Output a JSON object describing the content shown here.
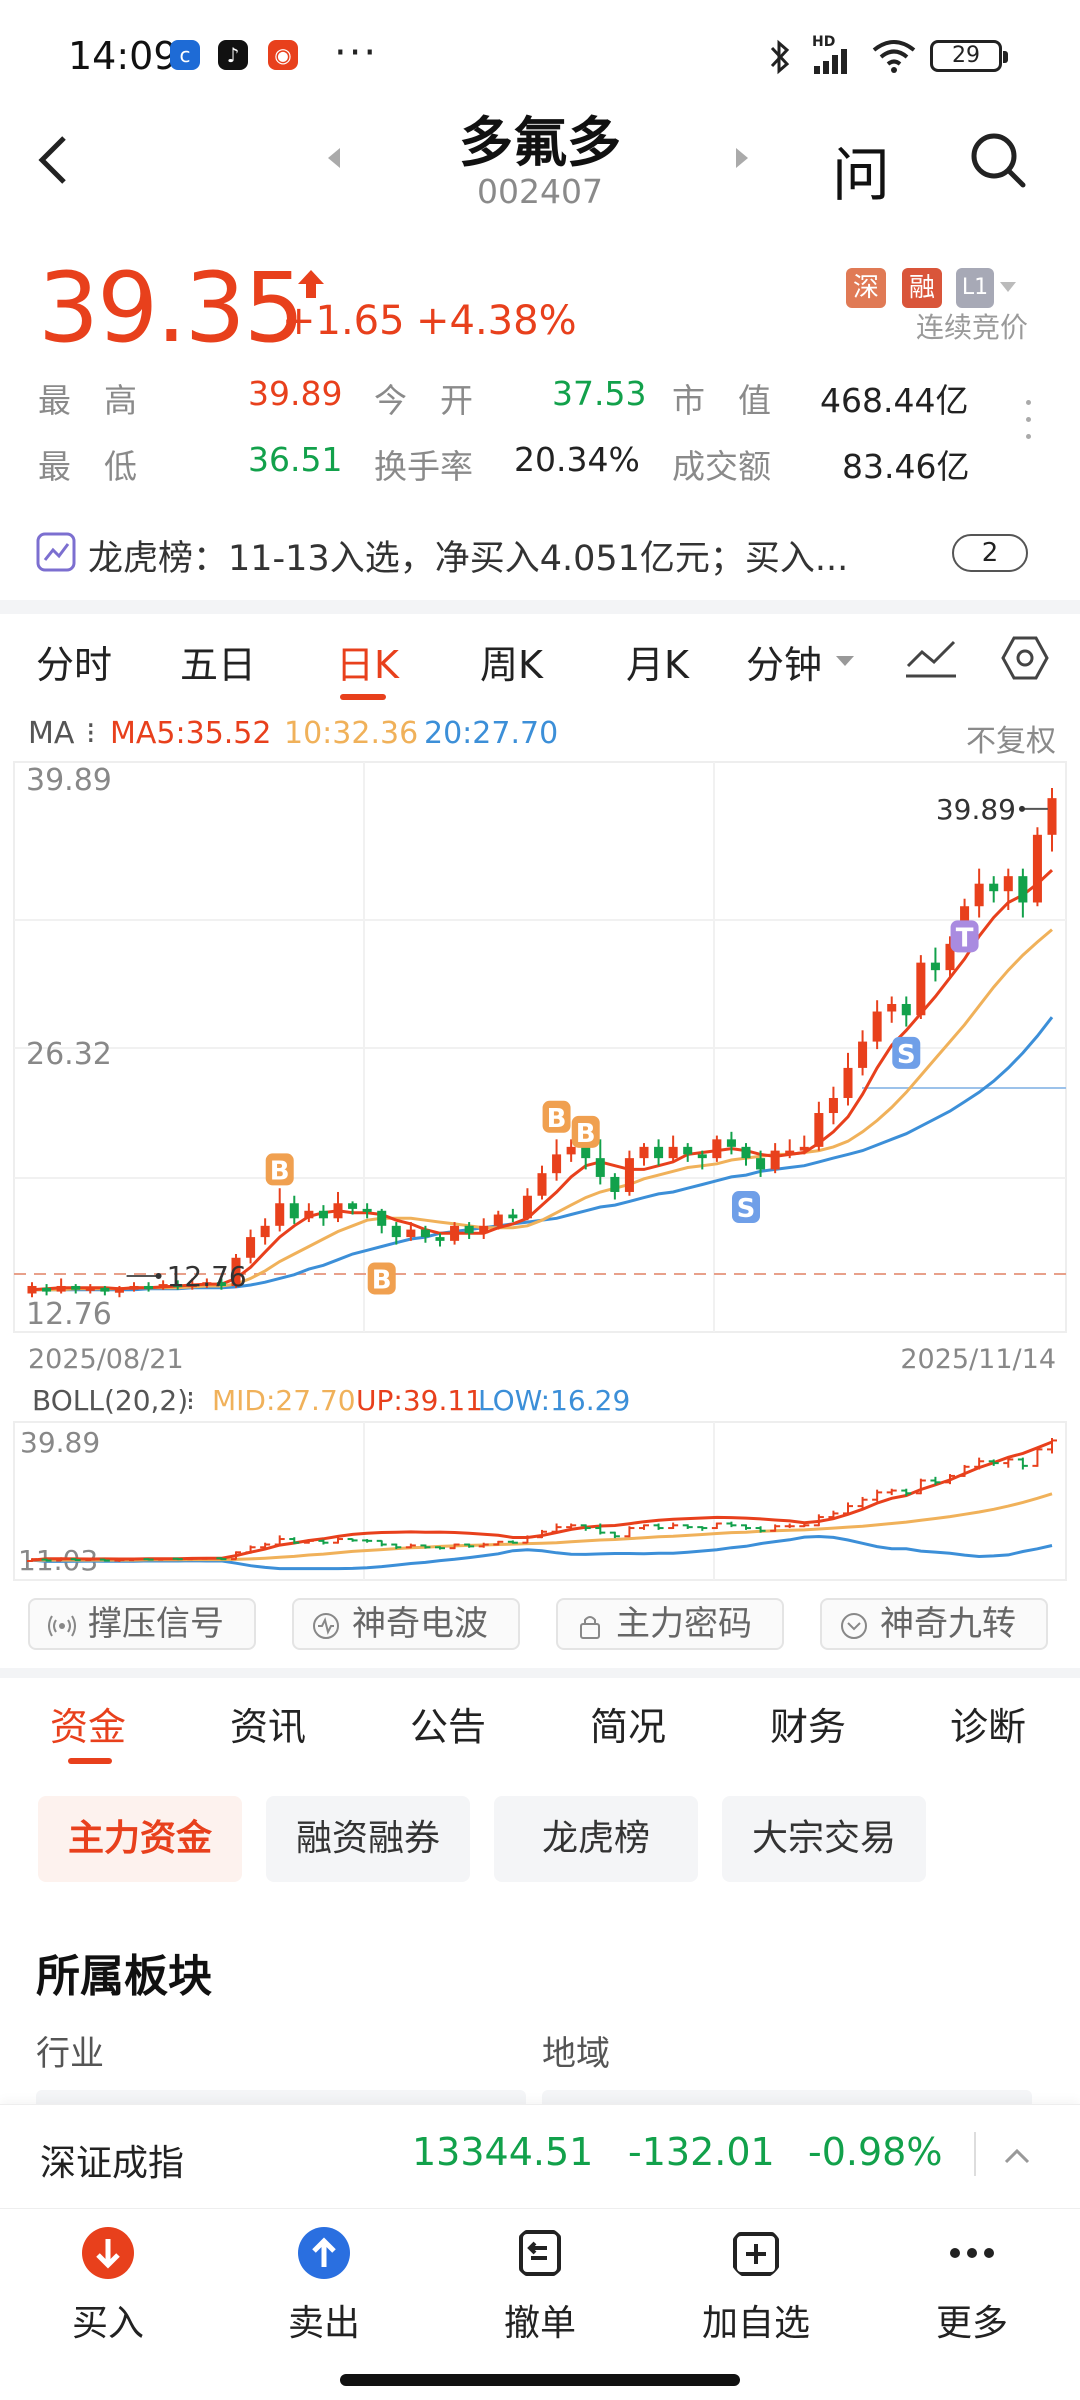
{
  "status_bar": {
    "time": "14:09",
    "battery": "29",
    "network": "HD"
  },
  "header": {
    "name": "多氟多",
    "code": "002407",
    "ask_label": "问"
  },
  "quote": {
    "price": "39.35",
    "change": "+1.65",
    "change_pct": "+4.38%",
    "tags": [
      "深",
      "融",
      "L1"
    ],
    "status": "连续竞价",
    "rows": [
      [
        {
          "label": "最　高",
          "value": "39.89",
          "color": "red"
        },
        {
          "label": "今　开",
          "value": "37.53",
          "color": "green"
        },
        {
          "label": "市　值",
          "value": "468.44亿",
          "color": "black"
        }
      ],
      [
        {
          "label": "最　低",
          "value": "36.51",
          "color": "green"
        },
        {
          "label": "换手率",
          "value": "20.34%",
          "color": "black"
        },
        {
          "label": "成交额",
          "value": "83.46亿",
          "color": "black"
        }
      ]
    ]
  },
  "dragon_list": {
    "text": "龙虎榜：11-13入选，净买入4.051亿元；买入...",
    "badge": "2"
  },
  "chart_tabs": [
    "分时",
    "五日",
    "日K",
    "周K",
    "月K",
    "分钟"
  ],
  "active_chart_tab": "日K",
  "ma": {
    "label": "MA",
    "ma5": "MA5:35.52",
    "ma10": "10:32.36",
    "ma20": "20:27.70",
    "adjust": "不复权",
    "colors": {
      "ma5": "#e8401c",
      "ma10": "#f0b15a",
      "ma20": "#3c8fd8"
    }
  },
  "chart_data": {
    "type": "candlestick",
    "y_high_label": "39.89",
    "y_mid_label": "26.32",
    "y_low_label": "12.76",
    "max_marker": "39.89",
    "min_marker": "12.76",
    "x_start": "2025/08/21",
    "x_end": "2025/11/14",
    "ylim": [
      12.76,
      39.89
    ],
    "signals": [
      "B",
      "B",
      "B",
      "B",
      "S",
      "S",
      "T"
    ],
    "candles": [
      [
        13.0,
        13.4,
        12.8,
        13.6
      ],
      [
        13.3,
        13.1,
        12.9,
        13.5
      ],
      [
        13.1,
        13.4,
        13.0,
        13.8
      ],
      [
        13.4,
        13.2,
        13.0,
        13.5
      ],
      [
        13.2,
        13.3,
        13.0,
        13.5
      ],
      [
        13.3,
        13.1,
        12.9,
        13.4
      ],
      [
        13.1,
        13.2,
        12.8,
        13.4
      ],
      [
        13.2,
        13.4,
        13.1,
        13.6
      ],
      [
        13.4,
        13.3,
        13.1,
        13.6
      ],
      [
        13.3,
        13.5,
        13.2,
        13.7
      ],
      [
        13.5,
        13.4,
        13.2,
        13.7
      ],
      [
        13.4,
        13.5,
        13.2,
        13.8
      ],
      [
        13.5,
        13.6,
        13.3,
        13.8
      ],
      [
        13.6,
        13.4,
        13.2,
        13.8
      ],
      [
        13.4,
        14.9,
        13.3,
        15.1
      ],
      [
        14.9,
        16.0,
        14.6,
        16.4
      ],
      [
        16.0,
        16.6,
        15.6,
        17.0
      ],
      [
        16.6,
        17.8,
        16.3,
        18.6
      ],
      [
        17.8,
        17.0,
        16.7,
        18.2
      ],
      [
        17.0,
        17.4,
        16.8,
        17.8
      ],
      [
        17.4,
        17.0,
        16.6,
        17.7
      ],
      [
        17.0,
        17.8,
        16.8,
        18.4
      ],
      [
        17.8,
        17.5,
        17.2,
        17.9
      ],
      [
        17.5,
        17.4,
        17.0,
        17.8
      ],
      [
        17.4,
        16.6,
        16.2,
        17.5
      ],
      [
        16.6,
        16.0,
        15.6,
        16.8
      ],
      [
        16.0,
        16.4,
        15.8,
        16.8
      ],
      [
        16.4,
        16.0,
        15.7,
        16.6
      ],
      [
        16.0,
        15.8,
        15.5,
        16.2
      ],
      [
        15.8,
        16.6,
        15.6,
        16.8
      ],
      [
        16.6,
        16.2,
        15.9,
        16.8
      ],
      [
        16.2,
        16.6,
        15.9,
        17.0
      ],
      [
        16.6,
        17.2,
        16.4,
        17.4
      ],
      [
        17.2,
        17.0,
        16.8,
        17.5
      ],
      [
        17.0,
        18.2,
        16.9,
        18.6
      ],
      [
        18.2,
        19.4,
        18.0,
        19.8
      ],
      [
        19.4,
        20.4,
        19.0,
        21.2
      ],
      [
        20.4,
        20.8,
        20.0,
        21.2
      ],
      [
        20.8,
        20.2,
        19.6,
        21.0
      ],
      [
        20.2,
        19.2,
        18.8,
        21.2
      ],
      [
        19.2,
        18.4,
        18.0,
        19.4
      ],
      [
        18.4,
        20.2,
        18.2,
        20.6
      ],
      [
        20.2,
        20.8,
        19.8,
        21.0
      ],
      [
        20.8,
        20.2,
        19.8,
        21.2
      ],
      [
        20.2,
        20.8,
        20.0,
        21.4
      ],
      [
        20.8,
        20.4,
        20.0,
        21.0
      ],
      [
        20.4,
        20.2,
        19.6,
        20.6
      ],
      [
        20.2,
        21.2,
        20.0,
        21.4
      ],
      [
        21.2,
        20.8,
        20.4,
        21.6
      ],
      [
        20.8,
        20.2,
        19.8,
        21.0
      ],
      [
        20.2,
        19.6,
        19.2,
        20.6
      ],
      [
        19.6,
        20.6,
        19.4,
        21.0
      ],
      [
        20.6,
        20.6,
        20.2,
        21.2
      ],
      [
        20.6,
        20.8,
        20.4,
        21.4
      ],
      [
        20.8,
        22.6,
        20.6,
        23.2
      ],
      [
        22.6,
        23.4,
        22.0,
        24.0
      ],
      [
        23.4,
        25.0,
        23.0,
        25.8
      ],
      [
        25.0,
        26.4,
        24.6,
        27.0
      ],
      [
        26.4,
        28.0,
        26.0,
        28.6
      ],
      [
        28.0,
        28.4,
        27.4,
        28.8
      ],
      [
        28.4,
        27.8,
        27.2,
        28.8
      ],
      [
        27.8,
        30.6,
        27.6,
        31.0
      ],
      [
        30.6,
        30.2,
        29.6,
        31.4
      ],
      [
        30.2,
        31.6,
        29.8,
        32.0
      ],
      [
        31.6,
        33.6,
        31.4,
        34.0
      ],
      [
        33.6,
        34.8,
        33.0,
        35.6
      ],
      [
        34.8,
        34.4,
        33.8,
        35.2
      ],
      [
        34.4,
        35.2,
        33.4,
        35.6
      ],
      [
        35.2,
        33.8,
        33.0,
        35.6
      ],
      [
        33.8,
        37.4,
        33.6,
        37.8
      ],
      [
        37.4,
        39.35,
        36.51,
        39.89
      ]
    ],
    "ma5": [
      13.2,
      13.25,
      13.3,
      13.3,
      13.3,
      13.3,
      13.25,
      13.3,
      13.3,
      13.35,
      13.4,
      13.45,
      13.5,
      13.5,
      13.8,
      14.4,
      15.2,
      16.0,
      16.6,
      17.1,
      17.3,
      17.4,
      17.3,
      17.3,
      17.2,
      16.9,
      16.7,
      16.4,
      16.2,
      16.2,
      16.2,
      16.2,
      16.5,
      16.7,
      17.0,
      17.7,
      18.4,
      19.2,
      19.8,
      20.0,
      19.8,
      19.6,
      19.6,
      19.8,
      20.0,
      20.4,
      20.5,
      20.6,
      20.7,
      20.6,
      20.4,
      20.3,
      20.4,
      20.5,
      21.0,
      21.6,
      22.4,
      23.6,
      25.0,
      26.2,
      27.0,
      27.9,
      28.8,
      29.8,
      30.8,
      32.0,
      33.0,
      33.8,
      34.2,
      34.8,
      35.52
    ],
    "ma10": [
      13.2,
      13.2,
      13.2,
      13.25,
      13.25,
      13.25,
      13.25,
      13.3,
      13.3,
      13.3,
      13.3,
      13.35,
      13.4,
      13.4,
      13.5,
      13.8,
      14.2,
      14.7,
      15.1,
      15.5,
      15.9,
      16.3,
      16.6,
      16.9,
      17.0,
      17.0,
      17.0,
      16.9,
      16.8,
      16.7,
      16.6,
      16.5,
      16.5,
      16.5,
      16.6,
      16.9,
      17.3,
      17.7,
      18.1,
      18.4,
      18.6,
      18.8,
      19.1,
      19.3,
      19.5,
      19.7,
      19.8,
      19.9,
      20.1,
      20.2,
      20.3,
      20.4,
      20.4,
      20.5,
      20.6,
      20.8,
      21.1,
      21.6,
      22.2,
      22.9,
      23.7,
      24.6,
      25.5,
      26.4,
      27.3,
      28.3,
      29.3,
      30.2,
      31.0,
      31.7,
      32.36
    ],
    "ma20": [
      13.2,
      13.2,
      13.2,
      13.2,
      13.2,
      13.2,
      13.2,
      13.2,
      13.25,
      13.25,
      13.25,
      13.3,
      13.3,
      13.3,
      13.35,
      13.45,
      13.6,
      13.8,
      14.0,
      14.3,
      14.5,
      14.8,
      15.1,
      15.3,
      15.5,
      15.7,
      15.9,
      16.0,
      16.2,
      16.3,
      16.4,
      16.5,
      16.6,
      16.7,
      16.8,
      16.9,
      17.0,
      17.2,
      17.4,
      17.6,
      17.7,
      17.9,
      18.1,
      18.3,
      18.4,
      18.6,
      18.8,
      19.0,
      19.2,
      19.3,
      19.5,
      19.6,
      19.7,
      19.8,
      20.0,
      20.2,
      20.4,
      20.6,
      20.9,
      21.2,
      21.5,
      21.9,
      22.3,
      22.7,
      23.2,
      23.7,
      24.3,
      25.0,
      25.8,
      26.7,
      27.7
    ]
  },
  "boll": {
    "label": "BOLL(20,2)",
    "mid": "MID:27.70",
    "up": "UP:39.11",
    "low": "LOW:16.29",
    "y_high": "39.89",
    "y_low": "11.03",
    "colors": {
      "mid": "#f0b15a",
      "up": "#e8401c",
      "low": "#3c8fd8"
    }
  },
  "signal_buttons": [
    "撑压信号",
    "神奇电波",
    "主力密码",
    "神奇九转"
  ],
  "fund_tabs": [
    "资金",
    "资讯",
    "公告",
    "简况",
    "财务",
    "诊断"
  ],
  "active_fund_tab": "资金",
  "chips": [
    "主力资金",
    "融资融券",
    "龙虎榜",
    "大宗交易"
  ],
  "sector": {
    "title": "所属板块",
    "industry": "行业",
    "region": "地域"
  },
  "index_ticker": {
    "name": "深证成指",
    "value": "13344.51",
    "change": "-132.01",
    "change_pct": "-0.98%"
  },
  "bottom_bar": [
    {
      "label": "买入",
      "color": "#e8401c"
    },
    {
      "label": "卖出",
      "color": "#2a6fe0"
    },
    {
      "label": "撤单",
      "color": "#222"
    },
    {
      "label": "加自选",
      "color": "#222"
    },
    {
      "label": "更多",
      "color": "#222"
    }
  ]
}
